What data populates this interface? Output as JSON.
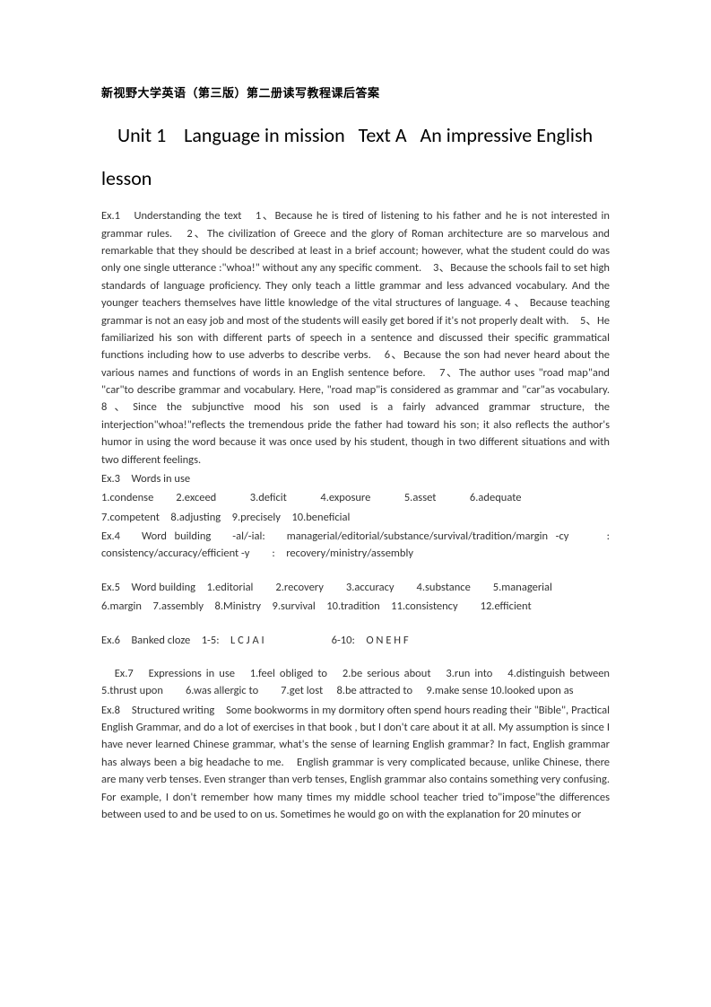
{
  "header": "新视野大学英语（第三版）第二册读写教程课后答案",
  "title": {
    "unit": "Unit 1",
    "topic": "Language in mission",
    "text_label": "Text A",
    "lesson": "An impressive English lesson"
  },
  "ex1": {
    "label": "Ex.1　Understanding the text　1、Because he is tired of listening to his father and he is not interested in grammar rules.　2、The civilization of Greece and the glory of Roman architecture are so marvelous and remarkable that they should be described at least in a brief account; however, what the student could do was only one single utterance :\"whoa!\" without any any specific comment.　3、Because the schools fail to set high standards of language proficiency. They only teach a little grammar and less advanced vocabulary. And the younger teachers themselves have little knowledge of the vital structures of language. 4 、 Because teaching grammar is not an easy job and most of the students will easily get bored if it's not properly dealt with.　5、He familiarized his son with different parts of speech in a sentence and discussed their specific grammatical functions including how to use adverbs to describe verbs.　6、Because the son had never heard about the various names and functions of words in an English sentence before.　7、The author uses \"road map\"and \"car\"to describe grammar and vocabulary. Here, \"road map\"is considered as grammar and \"car\"as vocabulary.　8、Since the subjunctive mood his son used is a fairly advanced grammar structure, the interjection\"whoa!\"reflects the tremendous pride the father had toward his son; it also reflects the author's humor in using the word because it was once used by his student, though in two different situations and with two different feelings."
  },
  "ex3": {
    "label": "Ex.3　Words in use",
    "line1": "1.condense　　2.exceed　　　3.deficit　　　4.exposure　　　5.asset　　　6.adequate",
    "line2": "7.competent　8.adjusting　9.precisely　10.beneficial"
  },
  "ex4": {
    "label": "Ex.4　Word building　-al/-ial:　managerial/editorial/substance/survival/tradition/margin -cy　　: consistency/accuracy/efficient -y　　:　recovery/ministry/assembly"
  },
  "ex5": {
    "line1": "Ex.5　Word building　1.editorial　　2.recovery　　3.accuracy　　4.substance　　5.managerial",
    "line2": "6.margin　7.assembly　8.Ministry　9.survival　10.tradition　11.consistency　　12.efficient"
  },
  "ex6": {
    "label": "Ex.6　Banked cloze　1-5:　L C J A I　　　　　　6-10:　O N E H F"
  },
  "ex7": {
    "label": "　Ex.7　Expressions in use　1.feel obliged to　2.be serious about　3.run into　4.distinguish between　5.thrust upon　　6.was allergic to　　7.get lost　 8.be attracted to　 9.make sense 10.looked upon as"
  },
  "ex8": {
    "label": "Ex.8　Structured writing　Some bookworms in my dormitory often spend hours reading their \"Bible\", Practical English Grammar, and do a lot of exercises in that book , but I don't care about it at all. My assumption is since I have never learned Chinese grammar, what's the sense of learning English grammar? In fact, English grammar has always been a big headache to me.　English grammar is very complicated because, unlike Chinese, there are many verb tenses. Even stranger than verb tenses, English grammar also contains something very confusing. For example, I don't remember how many times my middle school teacher tried to\"impose\"the differences between used to and be used to on us. Sometimes he would go on with the explanation for 20 minutes or"
  }
}
